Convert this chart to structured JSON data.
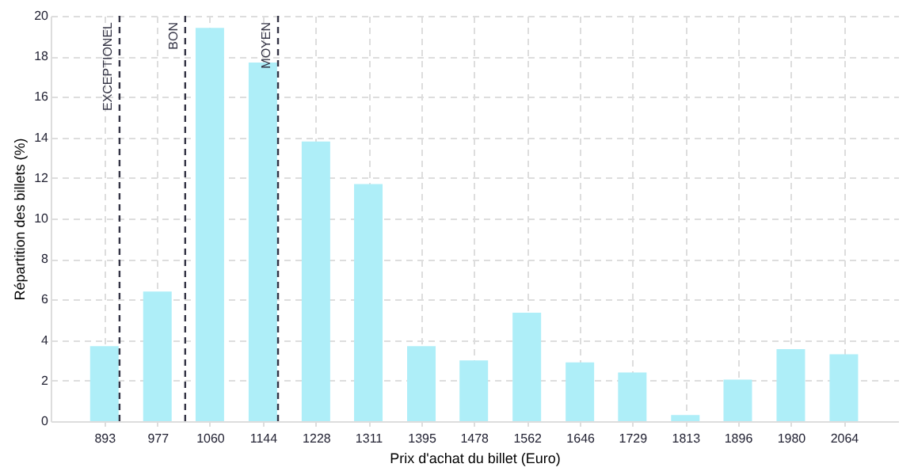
{
  "chart_data": {
    "type": "bar",
    "xlabel": "Prix d'achat du billet (Euro)",
    "ylabel": "Répartition des billets (%)",
    "x": [
      893,
      977,
      1060,
      1144,
      1228,
      1311,
      1395,
      1478,
      1562,
      1646,
      1729,
      1813,
      1896,
      1980,
      2064
    ],
    "values": [
      3.7,
      6.4,
      19.4,
      17.7,
      13.8,
      11.7,
      3.7,
      3.0,
      5.35,
      2.9,
      2.4,
      0.3,
      2.05,
      3.55,
      3.3
    ],
    "color": "#aeeef8",
    "xlim": [
      808,
      2150
    ],
    "xticks": [
      893,
      977,
      1060,
      1144,
      1228,
      1311,
      1395,
      1478,
      1562,
      1646,
      1729,
      1813,
      1896,
      1980,
      2064
    ],
    "ylim": [
      0,
      20
    ],
    "yticks": [
      0,
      2,
      4,
      6,
      8,
      10,
      12,
      14,
      16,
      18,
      20
    ],
    "grid": true,
    "ref_lines": [
      {
        "axis": "x",
        "value": 917,
        "label": "EXCEPTIONEL",
        "color": "#333344",
        "line_style": "dashed"
      },
      {
        "axis": "x",
        "value": 1021,
        "label": "BON",
        "color": "#333344",
        "line_style": "dashed"
      },
      {
        "axis": "x",
        "value": 1168,
        "label": "MOYEN",
        "color": "#333344",
        "line_style": "dashed"
      }
    ]
  }
}
